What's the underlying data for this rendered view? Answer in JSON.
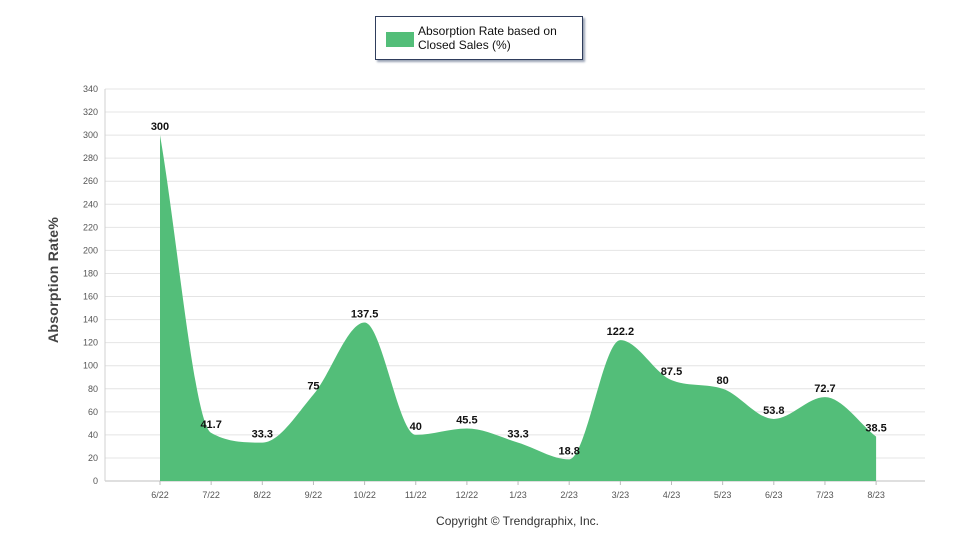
{
  "chart_data": {
    "type": "area",
    "title": "",
    "xlabel": "",
    "ylabel": "Absorption Rate%",
    "ylim": [
      0,
      340
    ],
    "yticks": [
      0,
      20,
      40,
      60,
      80,
      100,
      120,
      140,
      160,
      180,
      200,
      220,
      240,
      260,
      280,
      300,
      320,
      340
    ],
    "grid": true,
    "legend_position": "top-center",
    "categories": [
      "6/22",
      "7/22",
      "8/22",
      "9/22",
      "10/22",
      "11/22",
      "12/22",
      "1/23",
      "2/23",
      "3/23",
      "4/23",
      "5/23",
      "6/23",
      "7/23",
      "8/23"
    ],
    "series": [
      {
        "name": "Absorption Rate based on Closed Sales (%)",
        "color": "#53be79",
        "values": [
          300,
          41.7,
          33.3,
          75,
          137.5,
          40,
          45.5,
          33.3,
          18.8,
          122.2,
          87.5,
          80,
          53.8,
          72.7,
          38.5
        ],
        "labels": [
          "300",
          "41.7",
          "33.3",
          "75",
          "137.5",
          "40",
          "45.5",
          "33.3",
          "18.8",
          "122.2",
          "87.5",
          "80",
          "53.8",
          "72.7",
          "38.5"
        ]
      }
    ]
  },
  "footer": {
    "copyright": "Copyright © Trendgraphix, Inc."
  }
}
